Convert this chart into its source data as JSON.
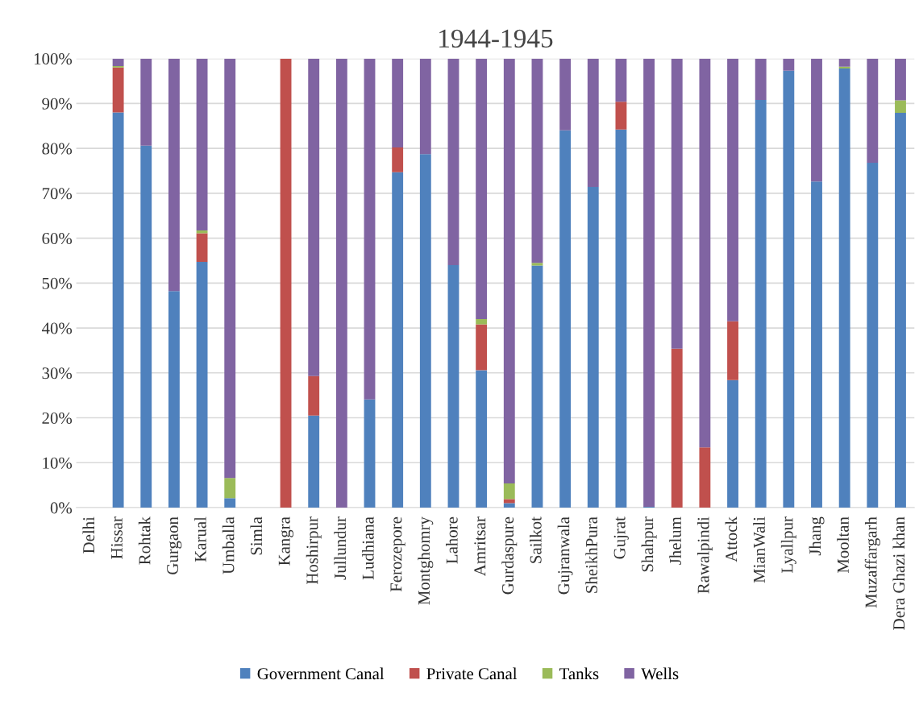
{
  "chart_data": {
    "type": "bar",
    "title": "1944-1945",
    "stacked": true,
    "legend": "bottom",
    "grid": "y",
    "categories": [
      "Delhi",
      "Hissar",
      "Rohtak",
      "Gurgaon",
      "Karual",
      "Umballa",
      "Simla",
      "Kangra",
      "Hoshirpur",
      "Jullundur",
      "Ludhiana",
      "Ferozepore",
      "Montghomry",
      "Lahore",
      "Amritsar",
      "Gurdaspure",
      "Sailkot",
      "Gujranwala",
      "SheikhPura",
      "Gujrat",
      "Shahpur",
      "Jhelum",
      "Rawalpindi",
      "Attock",
      "MianWali",
      "Lyallpur",
      "Jhang",
      "Mooltan",
      "Muzaffargarh",
      "Dera Ghazi khan"
    ],
    "ylim": [
      0,
      100
    ],
    "yticks": [
      {
        "value": 0,
        "label": "0%"
      },
      {
        "value": 10,
        "label": "10%"
      },
      {
        "value": 20,
        "label": "20%"
      },
      {
        "value": 30,
        "label": "30%"
      },
      {
        "value": 40,
        "label": "40%"
      },
      {
        "value": 50,
        "label": "50%"
      },
      {
        "value": 60,
        "label": "60%"
      },
      {
        "value": 70,
        "label": "70%"
      },
      {
        "value": 80,
        "label": "80%"
      },
      {
        "value": 90,
        "label": "90%"
      },
      {
        "value": 100,
        "label": "100%"
      }
    ],
    "series": [
      {
        "name": "Government Canal",
        "color": "#4f81bd",
        "values": [
          0,
          88,
          80.6,
          48.2,
          54.7,
          2.1,
          0,
          0,
          20.5,
          0,
          24.1,
          74.7,
          78.7,
          54,
          30.6,
          1,
          53.9,
          84,
          71.4,
          84.2,
          0.2,
          0,
          0,
          28.4,
          90.8,
          97.3,
          72.6,
          97.8,
          76.8,
          87.9
        ]
      },
      {
        "name": "Private Canal",
        "color": "#c0504d",
        "values": [
          0,
          10,
          0,
          0,
          6.4,
          0,
          0,
          100,
          8.8,
          0,
          0,
          5.5,
          0,
          0,
          10.2,
          0.9,
          0,
          0,
          0,
          6.2,
          0,
          35.4,
          13.4,
          13.1,
          0,
          0,
          0,
          0,
          0,
          0
        ]
      },
      {
        "name": "Tanks",
        "color": "#9bbb59",
        "values": [
          0,
          0.3,
          0,
          0,
          0.6,
          4.5,
          0,
          0,
          0,
          0,
          0,
          0,
          0,
          0,
          1.2,
          3.5,
          0.6,
          0,
          0,
          0,
          0,
          0,
          0,
          0,
          0,
          0,
          0,
          0.4,
          0,
          2.8
        ]
      },
      {
        "name": "Wells",
        "color": "#8064a2",
        "values": [
          0,
          1.7,
          19.4,
          51.8,
          38.3,
          93.4,
          0,
          0,
          70.7,
          100,
          75.9,
          19.8,
          21.3,
          46,
          58,
          94.6,
          45.5,
          16,
          28.6,
          9.6,
          99.8,
          64.6,
          86.6,
          58.5,
          9.2,
          2.7,
          27.4,
          1.8,
          23.2,
          9.3
        ]
      }
    ]
  }
}
